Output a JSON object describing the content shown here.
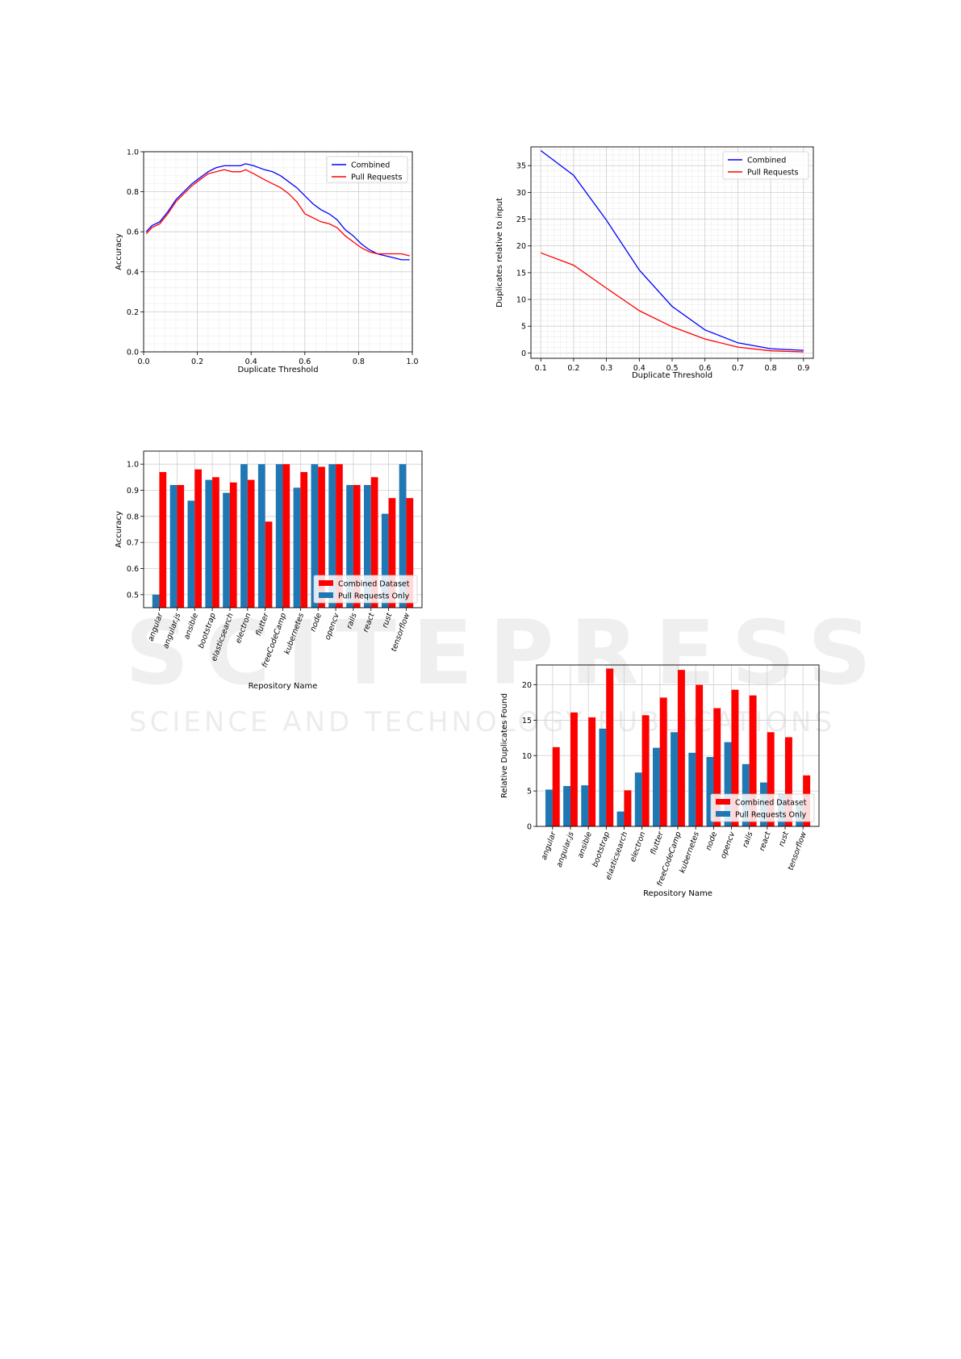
{
  "watermark": {
    "line1": "SCITEPRESS",
    "line2": "SCIENCE AND TECHNOLOGY PUBLICATIONS"
  },
  "chart_data": [
    {
      "type": "line",
      "xlabel": "Duplicate Threshold",
      "ylabel": "Accuracy",
      "xlim": [
        0.0,
        1.0
      ],
      "ylim": [
        0.0,
        1.0
      ],
      "xticks": [
        "0.0",
        "0.2",
        "0.4",
        "0.6",
        "0.8",
        "1.0"
      ],
      "yticks": [
        "0.0",
        "0.2",
        "0.4",
        "0.6",
        "0.8",
        "1.0"
      ],
      "grid": true,
      "legend": "top-right",
      "series": [
        {
          "name": "Combined",
          "color": "#0000ff",
          "x": [
            0.01,
            0.03,
            0.06,
            0.09,
            0.12,
            0.15,
            0.18,
            0.21,
            0.24,
            0.27,
            0.3,
            0.33,
            0.36,
            0.38,
            0.41,
            0.45,
            0.48,
            0.51,
            0.54,
            0.57,
            0.6,
            0.63,
            0.66,
            0.69,
            0.72,
            0.75,
            0.78,
            0.81,
            0.84,
            0.87,
            0.9,
            0.93,
            0.96,
            0.99
          ],
          "y": [
            0.6,
            0.63,
            0.65,
            0.7,
            0.76,
            0.8,
            0.84,
            0.87,
            0.9,
            0.92,
            0.93,
            0.93,
            0.93,
            0.94,
            0.93,
            0.91,
            0.9,
            0.88,
            0.85,
            0.82,
            0.78,
            0.74,
            0.71,
            0.69,
            0.66,
            0.61,
            0.58,
            0.54,
            0.51,
            0.49,
            0.48,
            0.47,
            0.46,
            0.46
          ]
        },
        {
          "name": "Pull Requests",
          "color": "#ff0000",
          "x": [
            0.01,
            0.03,
            0.06,
            0.09,
            0.12,
            0.15,
            0.18,
            0.21,
            0.24,
            0.27,
            0.3,
            0.33,
            0.36,
            0.38,
            0.41,
            0.45,
            0.48,
            0.51,
            0.54,
            0.57,
            0.6,
            0.63,
            0.66,
            0.69,
            0.72,
            0.75,
            0.78,
            0.81,
            0.84,
            0.87,
            0.9,
            0.93,
            0.96,
            0.99
          ],
          "y": [
            0.59,
            0.62,
            0.64,
            0.69,
            0.75,
            0.79,
            0.83,
            0.86,
            0.89,
            0.9,
            0.91,
            0.9,
            0.9,
            0.91,
            0.89,
            0.86,
            0.84,
            0.82,
            0.79,
            0.75,
            0.69,
            0.67,
            0.65,
            0.64,
            0.62,
            0.58,
            0.55,
            0.52,
            0.5,
            0.49,
            0.49,
            0.49,
            0.49,
            0.48
          ]
        }
      ]
    },
    {
      "type": "line",
      "xlabel": "Duplicate Threshold",
      "ylabel": "Duplicates relative to input",
      "xlim": [
        0.07,
        0.93
      ],
      "ylim": [
        -1,
        38.5
      ],
      "xticks": [
        "0.1",
        "0.2",
        "0.3",
        "0.4",
        "0.5",
        "0.6",
        "0.7",
        "0.8",
        "0.9"
      ],
      "yticks": [
        "0",
        "5",
        "10",
        "15",
        "20",
        "25",
        "30",
        "35"
      ],
      "grid": true,
      "legend": "top-right",
      "series": [
        {
          "name": "Combined",
          "color": "#0000ff",
          "x": [
            0.1,
            0.2,
            0.3,
            0.4,
            0.5,
            0.6,
            0.7,
            0.8,
            0.9
          ],
          "y": [
            37.8,
            33.2,
            24.8,
            15.5,
            8.7,
            4.3,
            1.9,
            0.8,
            0.5
          ]
        },
        {
          "name": "Pull Requests",
          "color": "#ff0000",
          "x": [
            0.1,
            0.2,
            0.3,
            0.4,
            0.5,
            0.6,
            0.7,
            0.8,
            0.9
          ],
          "y": [
            18.7,
            16.4,
            12.1,
            7.9,
            4.9,
            2.6,
            1.1,
            0.4,
            0.2
          ]
        }
      ]
    },
    {
      "type": "bar",
      "xlabel": "Repository Name",
      "ylabel": "Accuracy",
      "ylim": [
        0.45,
        1.05
      ],
      "yticks": [
        "0.5",
        "0.6",
        "0.7",
        "0.8",
        "0.9",
        "1.0"
      ],
      "grid": true,
      "legend": "bottom-right",
      "categories": [
        "angular",
        "angular.js",
        "ansible",
        "bootstrap",
        "elasticsearch",
        "electron",
        "flutter",
        "freeCodeCamp",
        "kubernetes",
        "node",
        "opencv",
        "rails",
        "react",
        "rust",
        "tensorflow"
      ],
      "series": [
        {
          "name": "Pull Requests Only",
          "color": "#1f77b4",
          "values": [
            0.5,
            0.92,
            0.86,
            0.94,
            0.89,
            1.0,
            1.0,
            1.0,
            0.91,
            1.0,
            1.0,
            0.92,
            0.92,
            0.81,
            1.0
          ]
        },
        {
          "name": "Combined Dataset",
          "color": "#ff0000",
          "values": [
            0.97,
            0.92,
            0.98,
            0.95,
            0.93,
            0.94,
            0.78,
            1.0,
            0.97,
            0.99,
            1.0,
            0.92,
            0.95,
            0.87,
            0.87
          ]
        }
      ]
    },
    {
      "type": "bar",
      "xlabel": "Repository Name",
      "ylabel": "Relative Duplicates Found",
      "ylim": [
        0,
        22.8
      ],
      "yticks": [
        "0",
        "5",
        "10",
        "15",
        "20"
      ],
      "grid": true,
      "legend": "bottom-right",
      "categories": [
        "angular",
        "angular.js",
        "ansible",
        "bootstrap",
        "elasticsearch",
        "electron",
        "flutter",
        "freeCodeCamp",
        "kubernetes",
        "node",
        "opencv",
        "rails",
        "react",
        "rust",
        "tensorflow"
      ],
      "series": [
        {
          "name": "Pull Requests Only",
          "color": "#1f77b4",
          "values": [
            5.2,
            5.7,
            5.8,
            13.8,
            2.1,
            7.6,
            11.1,
            13.3,
            10.4,
            9.8,
            11.9,
            8.8,
            6.2,
            4.6,
            3.0
          ]
        },
        {
          "name": "Combined Dataset",
          "color": "#ff0000",
          "values": [
            11.2,
            16.1,
            15.4,
            22.3,
            5.1,
            15.7,
            18.2,
            22.1,
            20.0,
            16.7,
            19.3,
            18.5,
            13.3,
            12.6,
            7.2
          ]
        }
      ]
    }
  ]
}
